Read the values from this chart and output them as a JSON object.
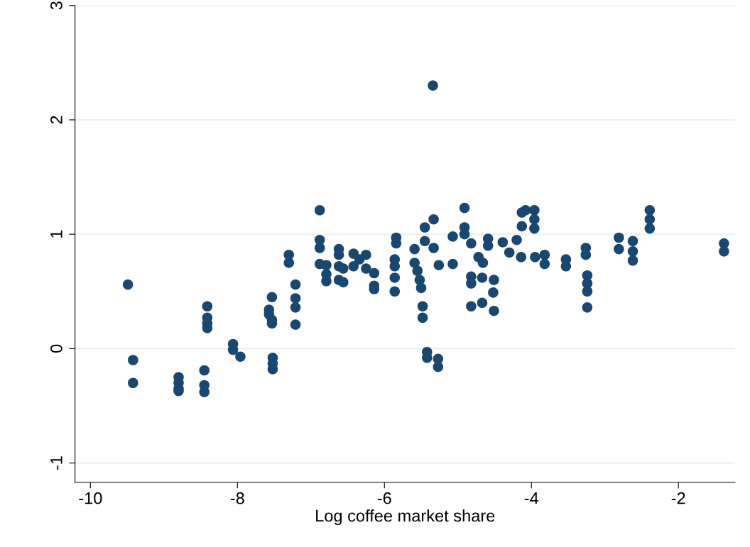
{
  "chart_data": {
    "type": "scatter",
    "xlabel": "Log coffee market share",
    "xlim": [
      -10.21,
      -1.23
    ],
    "ylim": [
      -1.17,
      3.0
    ],
    "xticks": [
      -10,
      -8,
      -6,
      -4,
      -2
    ],
    "yticks": [
      -1,
      0,
      1,
      2,
      3
    ],
    "grid": "y",
    "marker": "circle",
    "series": [
      {
        "color": "#1a476f",
        "x": [
          -9.49,
          -9.42,
          -9.42,
          -8.8,
          -8.8,
          -8.8,
          -8.8,
          -8.45,
          -8.45,
          -8.45,
          -8.41,
          -8.41,
          -8.41,
          -8.41,
          -8.06,
          -8.06,
          -7.96,
          -7.53,
          -7.57,
          -7.57,
          -7.53,
          -7.53,
          -7.52,
          -7.52,
          -7.52,
          -7.3,
          -7.3,
          -7.21,
          -7.21,
          -7.21,
          -7.21,
          -6.88,
          -6.88,
          -6.88,
          -6.88,
          -6.79,
          -6.79,
          -6.79,
          -6.62,
          -6.62,
          -6.62,
          -6.62,
          -6.56,
          -6.56,
          -6.42,
          -6.42,
          -6.34,
          -6.25,
          -6.25,
          -6.14,
          -6.14,
          -6.14,
          -5.84,
          -5.84,
          -5.86,
          -5.86,
          -5.86,
          -5.86,
          -5.59,
          -5.59,
          -5.55,
          -5.52,
          -5.5,
          -5.45,
          -5.45,
          -5.48,
          -5.48,
          -5.42,
          -5.42,
          -5.33,
          -5.33,
          -5.26,
          -5.27,
          -5.27,
          -5.07,
          -5.07,
          -4.91,
          -4.91,
          -4.91,
          -4.82,
          -4.82,
          -4.82,
          -4.82,
          -4.72,
          -4.66,
          -4.67,
          -4.67,
          -4.59,
          -4.59,
          -4.51,
          -4.52,
          -4.51,
          -4.39,
          -4.3,
          -4.2,
          -4.14,
          -4.13,
          -4.08,
          -4.13,
          -3.96,
          -3.96,
          -3.96,
          -3.95,
          -3.82,
          -3.82,
          -3.53,
          -3.53,
          -3.26,
          -3.26,
          -3.24,
          -3.24,
          -3.24,
          -3.24,
          -2.81,
          -2.81,
          -2.62,
          -2.62,
          -2.62,
          -2.39,
          -2.39,
          -2.39,
          -1.38,
          -1.38,
          -5.34
        ],
        "values": [
          0.56,
          -0.1,
          -0.3,
          -0.25,
          -0.3,
          -0.35,
          -0.37,
          -0.19,
          -0.32,
          -0.38,
          0.37,
          0.27,
          0.22,
          0.18,
          0.04,
          -0.01,
          -0.07,
          0.45,
          0.34,
          0.3,
          0.25,
          0.22,
          -0.08,
          -0.13,
          -0.18,
          0.82,
          0.75,
          0.56,
          0.44,
          0.36,
          0.21,
          1.21,
          0.95,
          0.88,
          0.74,
          0.73,
          0.65,
          0.59,
          0.87,
          0.82,
          0.72,
          0.6,
          0.7,
          0.58,
          0.83,
          0.72,
          0.78,
          0.82,
          0.7,
          0.66,
          0.55,
          0.52,
          0.97,
          0.92,
          0.78,
          0.72,
          0.62,
          0.5,
          0.87,
          0.75,
          0.68,
          0.6,
          0.53,
          1.06,
          0.94,
          0.37,
          0.27,
          -0.03,
          -0.08,
          1.13,
          0.88,
          0.73,
          -0.09,
          -0.16,
          0.98,
          0.74,
          1.23,
          1.06,
          1.0,
          0.92,
          0.63,
          0.57,
          0.37,
          0.8,
          0.75,
          0.62,
          0.4,
          0.96,
          0.9,
          0.6,
          0.49,
          0.33,
          0.93,
          0.84,
          0.95,
          0.8,
          1.19,
          1.21,
          1.07,
          1.21,
          1.13,
          1.05,
          0.8,
          0.82,
          0.74,
          0.78,
          0.72,
          0.88,
          0.82,
          0.64,
          0.57,
          0.5,
          0.36,
          0.97,
          0.87,
          0.94,
          0.85,
          0.77,
          1.21,
          1.13,
          1.05,
          0.92,
          0.85,
          2.3
        ]
      }
    ]
  }
}
